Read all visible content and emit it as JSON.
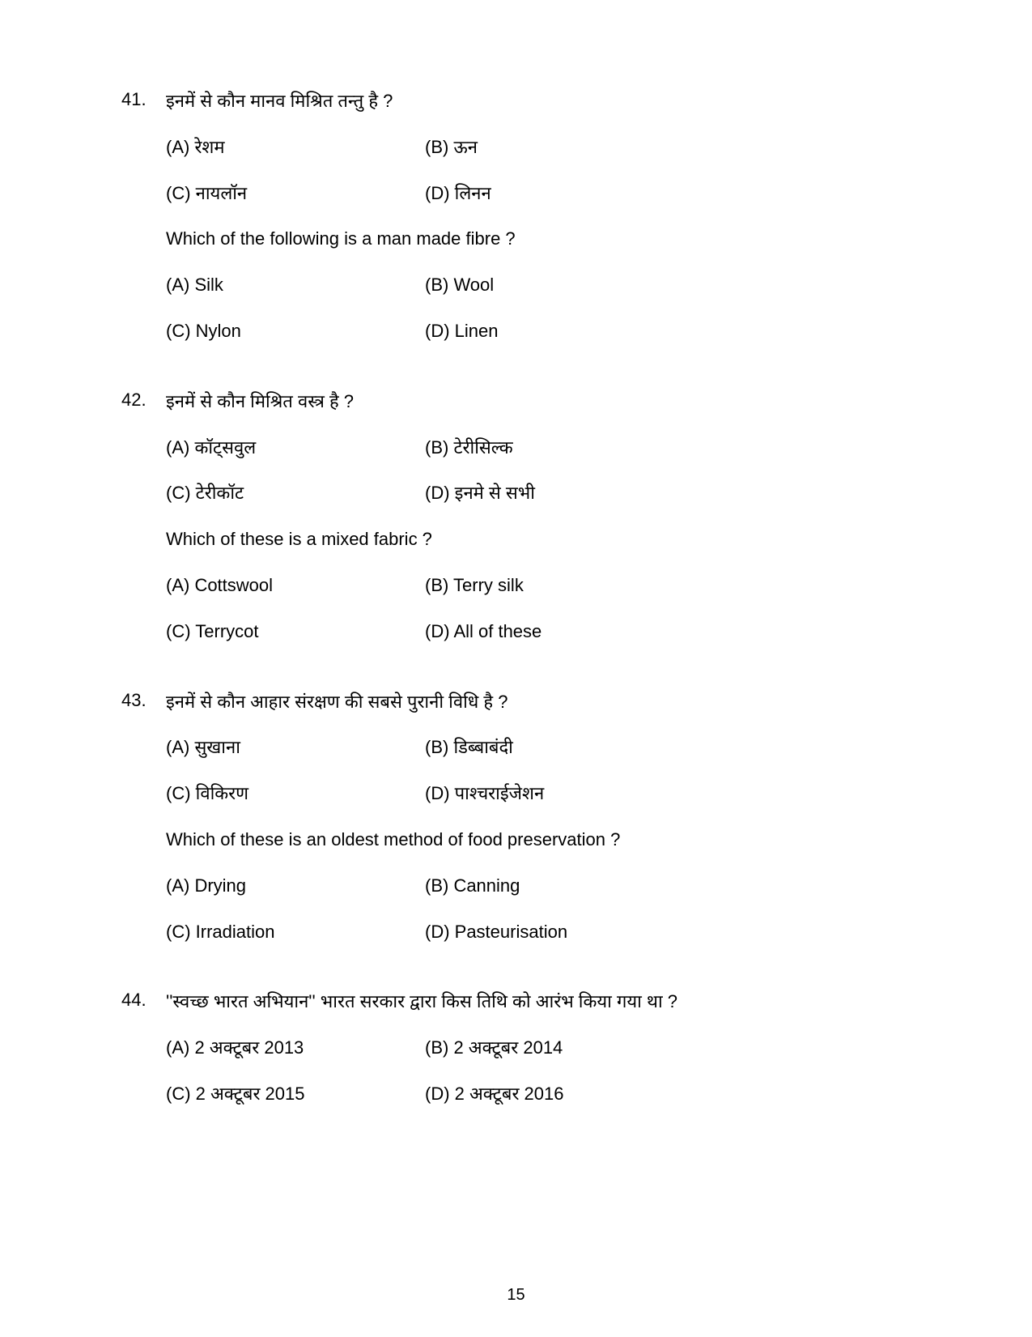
{
  "page_number": "15",
  "questions": [
    {
      "num": "41.",
      "hi_q": "इनमें से कौन मानव मिश्रित तन्तु है ?",
      "hi_opts": {
        "a": "(A) रेशम",
        "b": "(B) ऊन",
        "c": "(C) नायलॉन",
        "d": "(D) लिनन"
      },
      "en_q": "Which of the following is a man made fibre ?",
      "en_opts": {
        "a": "(A) Silk",
        "b": "(B) Wool",
        "c": "(C) Nylon",
        "d": "(D) Linen"
      }
    },
    {
      "num": "42.",
      "hi_q": "इनमें से कौन मिश्रित वस्त्र है ?",
      "hi_opts": {
        "a": "(A) कॉट्सवुल",
        "b": "(B) टेरीसिल्क",
        "c": "(C) टेरीकॉट",
        "d": "(D) इनमे से सभी"
      },
      "en_q": "Which of these is a mixed fabric ?",
      "en_opts": {
        "a": "(A) Cottswool",
        "b": "(B) Terry silk",
        "c": "(C) Terrycot",
        "d": "(D) All of these"
      }
    },
    {
      "num": "43.",
      "hi_q": "इनमें से कौन आहार संरक्षण की सबसे पुरानी विधि है ?",
      "hi_opts": {
        "a": "(A) सुखाना",
        "b": "(B) डिब्बाबंदी",
        "c": "(C) विकिरण",
        "d": "(D) पाश्चराईजेशन"
      },
      "en_q": "Which  of these is an oldest method of food preservation ?",
      "en_opts": {
        "a": "(A) Drying",
        "b": "(B) Canning",
        "c": "(C) Irradiation",
        "d": "(D) Pasteurisation"
      }
    },
    {
      "num": "44.",
      "hi_q": "''स्वच्छ भारत अभियान'' भारत सरकार द्वारा किस तिथि को आरंभ किया गया था ?",
      "hi_opts": {
        "a": "(A) 2 अक्टूबर 2013",
        "b": "(B) 2 अक्टूबर 2014",
        "c": "(C) 2 अक्टूबर 2015",
        "d": "(D) 2 अक्टूबर 2016"
      }
    }
  ]
}
